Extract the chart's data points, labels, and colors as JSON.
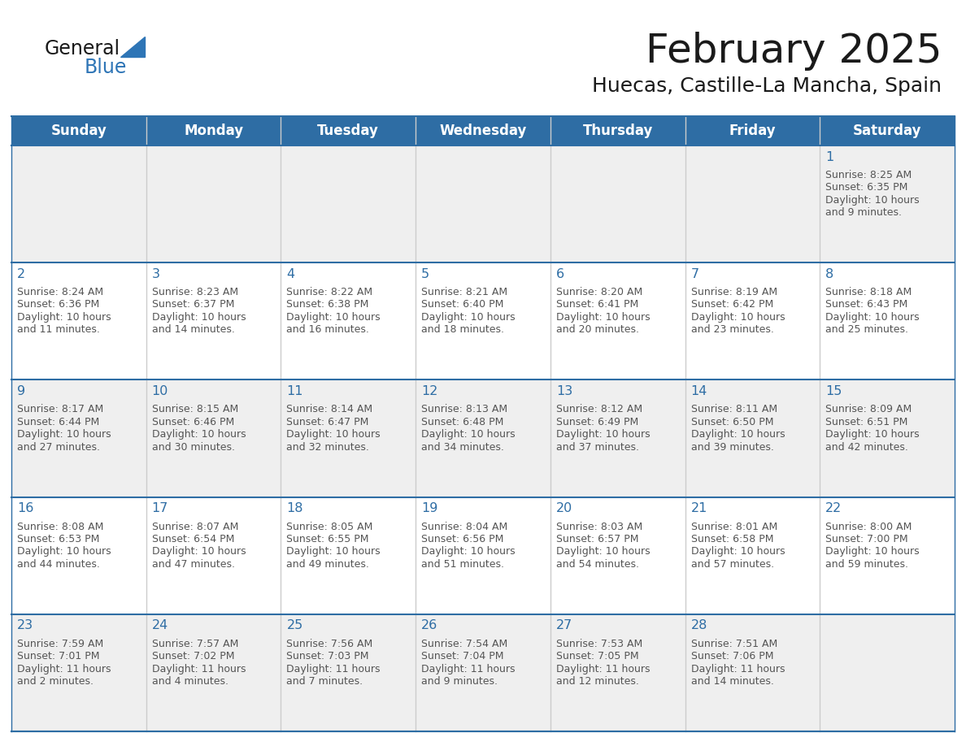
{
  "title": "February 2025",
  "subtitle": "Huecas, Castille-La Mancha, Spain",
  "days_of_week": [
    "Sunday",
    "Monday",
    "Tuesday",
    "Wednesday",
    "Thursday",
    "Friday",
    "Saturday"
  ],
  "header_bg": "#2E6DA4",
  "header_text": "#FFFFFF",
  "cell_bg_even": "#EFEFEF",
  "cell_bg_odd": "#FFFFFF",
  "day_number_color": "#2E6DA4",
  "text_color": "#555555",
  "line_color": "#2E6DA4",
  "vert_line_color": "#CCCCCC",
  "logo_general_color": "#1A1A1A",
  "logo_blue_color": "#2E75B6",
  "calendar_data": [
    [
      null,
      null,
      null,
      null,
      null,
      null,
      {
        "day": 1,
        "sunrise": "8:25 AM",
        "sunset": "6:35 PM",
        "daylight": "10 hours and 9 minutes."
      }
    ],
    [
      {
        "day": 2,
        "sunrise": "8:24 AM",
        "sunset": "6:36 PM",
        "daylight": "10 hours and 11 minutes."
      },
      {
        "day": 3,
        "sunrise": "8:23 AM",
        "sunset": "6:37 PM",
        "daylight": "10 hours and 14 minutes."
      },
      {
        "day": 4,
        "sunrise": "8:22 AM",
        "sunset": "6:38 PM",
        "daylight": "10 hours and 16 minutes."
      },
      {
        "day": 5,
        "sunrise": "8:21 AM",
        "sunset": "6:40 PM",
        "daylight": "10 hours and 18 minutes."
      },
      {
        "day": 6,
        "sunrise": "8:20 AM",
        "sunset": "6:41 PM",
        "daylight": "10 hours and 20 minutes."
      },
      {
        "day": 7,
        "sunrise": "8:19 AM",
        "sunset": "6:42 PM",
        "daylight": "10 hours and 23 minutes."
      },
      {
        "day": 8,
        "sunrise": "8:18 AM",
        "sunset": "6:43 PM",
        "daylight": "10 hours and 25 minutes."
      }
    ],
    [
      {
        "day": 9,
        "sunrise": "8:17 AM",
        "sunset": "6:44 PM",
        "daylight": "10 hours and 27 minutes."
      },
      {
        "day": 10,
        "sunrise": "8:15 AM",
        "sunset": "6:46 PM",
        "daylight": "10 hours and 30 minutes."
      },
      {
        "day": 11,
        "sunrise": "8:14 AM",
        "sunset": "6:47 PM",
        "daylight": "10 hours and 32 minutes."
      },
      {
        "day": 12,
        "sunrise": "8:13 AM",
        "sunset": "6:48 PM",
        "daylight": "10 hours and 34 minutes."
      },
      {
        "day": 13,
        "sunrise": "8:12 AM",
        "sunset": "6:49 PM",
        "daylight": "10 hours and 37 minutes."
      },
      {
        "day": 14,
        "sunrise": "8:11 AM",
        "sunset": "6:50 PM",
        "daylight": "10 hours and 39 minutes."
      },
      {
        "day": 15,
        "sunrise": "8:09 AM",
        "sunset": "6:51 PM",
        "daylight": "10 hours and 42 minutes."
      }
    ],
    [
      {
        "day": 16,
        "sunrise": "8:08 AM",
        "sunset": "6:53 PM",
        "daylight": "10 hours and 44 minutes."
      },
      {
        "day": 17,
        "sunrise": "8:07 AM",
        "sunset": "6:54 PM",
        "daylight": "10 hours and 47 minutes."
      },
      {
        "day": 18,
        "sunrise": "8:05 AM",
        "sunset": "6:55 PM",
        "daylight": "10 hours and 49 minutes."
      },
      {
        "day": 19,
        "sunrise": "8:04 AM",
        "sunset": "6:56 PM",
        "daylight": "10 hours and 51 minutes."
      },
      {
        "day": 20,
        "sunrise": "8:03 AM",
        "sunset": "6:57 PM",
        "daylight": "10 hours and 54 minutes."
      },
      {
        "day": 21,
        "sunrise": "8:01 AM",
        "sunset": "6:58 PM",
        "daylight": "10 hours and 57 minutes."
      },
      {
        "day": 22,
        "sunrise": "8:00 AM",
        "sunset": "7:00 PM",
        "daylight": "10 hours and 59 minutes."
      }
    ],
    [
      {
        "day": 23,
        "sunrise": "7:59 AM",
        "sunset": "7:01 PM",
        "daylight": "11 hours and 2 minutes."
      },
      {
        "day": 24,
        "sunrise": "7:57 AM",
        "sunset": "7:02 PM",
        "daylight": "11 hours and 4 minutes."
      },
      {
        "day": 25,
        "sunrise": "7:56 AM",
        "sunset": "7:03 PM",
        "daylight": "11 hours and 7 minutes."
      },
      {
        "day": 26,
        "sunrise": "7:54 AM",
        "sunset": "7:04 PM",
        "daylight": "11 hours and 9 minutes."
      },
      {
        "day": 27,
        "sunrise": "7:53 AM",
        "sunset": "7:05 PM",
        "daylight": "11 hours and 12 minutes."
      },
      {
        "day": 28,
        "sunrise": "7:51 AM",
        "sunset": "7:06 PM",
        "daylight": "11 hours and 14 minutes."
      },
      null
    ]
  ]
}
